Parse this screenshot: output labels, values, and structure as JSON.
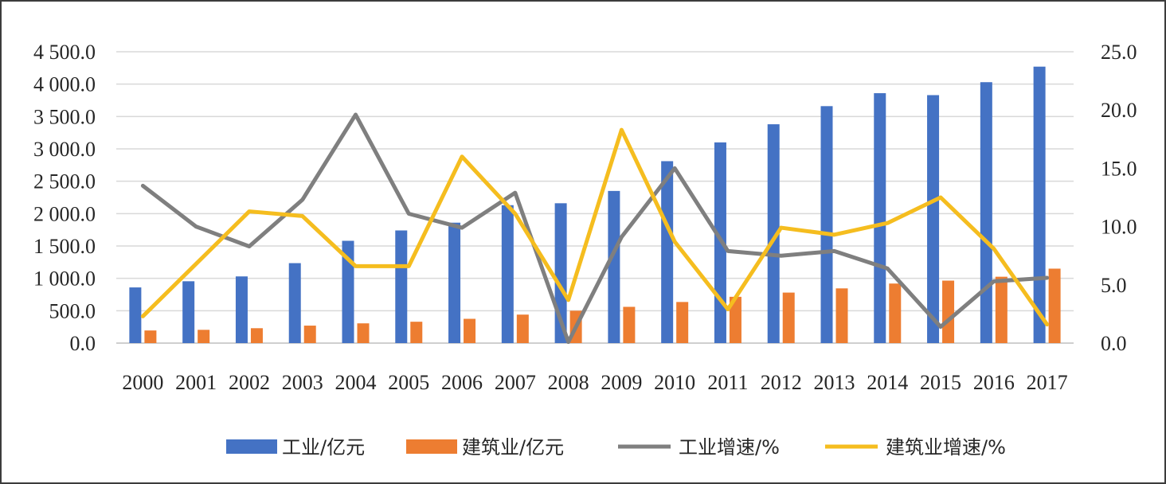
{
  "chart_data": {
    "type": "bar",
    "categories": [
      "2000",
      "2001",
      "2002",
      "2003",
      "2004",
      "2005",
      "2006",
      "2007",
      "2008",
      "2009",
      "2010",
      "2011",
      "2012",
      "2013",
      "2014",
      "2015",
      "2016",
      "2017"
    ],
    "series": [
      {
        "name": "工业/亿元",
        "kind": "bar",
        "axis": "left",
        "color": "#4472c4",
        "values": [
          860,
          955,
          1030,
          1235,
          1580,
          1740,
          1860,
          2130,
          2160,
          2350,
          2810,
          3100,
          3380,
          3660,
          3860,
          3830,
          4030,
          4270
        ]
      },
      {
        "name": "建筑业/亿元",
        "kind": "bar",
        "axis": "left",
        "color": "#ed7d31",
        "values": [
          195,
          205,
          230,
          270,
          305,
          330,
          375,
          440,
          500,
          560,
          635,
          715,
          780,
          845,
          920,
          965,
          1025,
          1150
        ]
      },
      {
        "name": "工业增速/%",
        "kind": "line",
        "axis": "right",
        "color": "#7f7f7f",
        "values": [
          13.5,
          10.0,
          8.3,
          12.3,
          19.6,
          11.1,
          9.9,
          12.9,
          0.1,
          9.1,
          15.0,
          7.9,
          7.5,
          7.9,
          6.4,
          1.4,
          5.3,
          5.6
        ]
      },
      {
        "name": "建筑业增速/%",
        "kind": "line",
        "axis": "right",
        "color": "#f5bd1f",
        "values": [
          2.3,
          6.8,
          11.3,
          10.9,
          6.6,
          6.6,
          16.0,
          11.1,
          3.7,
          18.3,
          8.7,
          2.9,
          9.9,
          9.3,
          10.3,
          12.5,
          8.1,
          1.6
        ]
      }
    ],
    "ylim_left": [
      0,
      4500
    ],
    "ylim_right": [
      0,
      25
    ],
    "yticks_left": [
      "0.0",
      "500.0",
      "1 000.0",
      "1 500.0",
      "2 000.0",
      "2 500.0",
      "3 000.0",
      "3 500.0",
      "4 000.0",
      "4 500.0"
    ],
    "yticks_right": [
      "0.0",
      "5.0",
      "10.0",
      "15.0",
      "20.0",
      "25.0"
    ],
    "grid": true,
    "legend_position": "bottom"
  }
}
